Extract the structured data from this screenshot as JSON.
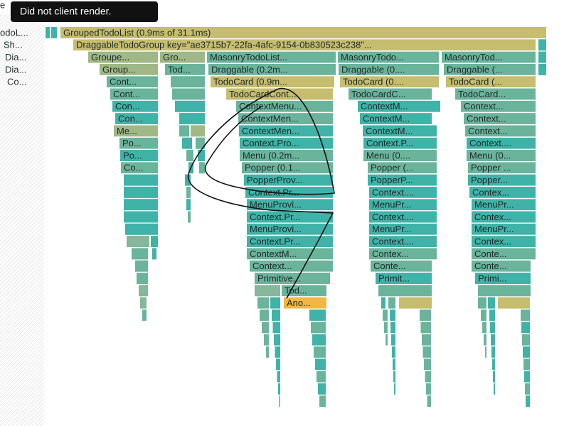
{
  "tooltip": "Did not client render.",
  "corner_text": "e",
  "rows": [
    {
      "side": "odoL...",
      "nodes": [
        {
          "label": "GroupedTodoList (0.9ms of 31.1ms)"
        }
      ]
    },
    {
      "side": "Sh...",
      "nodes": [
        {
          "label": "DraggableTodoGroup key=\"ae3715b7-22fa-4afc-9154-0b830523c238\"..."
        }
      ]
    },
    {
      "side": "Dia...",
      "nodes": [
        {
          "label": "Groupe..."
        },
        {
          "label": "Gro..."
        },
        {
          "label": "MasonryTodoList..."
        },
        {
          "label": "MasonryTodo..."
        },
        {
          "label": "MasonryTod..."
        }
      ]
    },
    {
      "side": "Dia...",
      "nodes": [
        {
          "label": "Group..."
        },
        {
          "label": "Tod..."
        },
        {
          "label": "Draggable (0.2m..."
        },
        {
          "label": "Draggable (0...."
        },
        {
          "label": "Draggable (..."
        }
      ]
    },
    {
      "side": "Co...",
      "nodes": [
        {
          "label": "Cont..."
        },
        {
          "label": "TodoCard (0.9m..."
        },
        {
          "label": "TodoCard (0...."
        },
        {
          "label": "TodoCard (..."
        }
      ]
    },
    {
      "nodes": [
        {
          "label": "Cont..."
        },
        {
          "label": "TodoCardCont..."
        },
        {
          "label": "TodoCardC..."
        },
        {
          "label": "TodoCard..."
        }
      ]
    },
    {
      "nodes": [
        {
          "label": "Con..."
        },
        {
          "label": "ContextMenu..."
        },
        {
          "label": "ContextM..."
        },
        {
          "label": "Context..."
        }
      ]
    },
    {
      "nodes": [
        {
          "label": "Con..."
        },
        {
          "label": "ContextMen..."
        },
        {
          "label": "ContextM..."
        },
        {
          "label": "Context..."
        }
      ]
    },
    {
      "nodes": [
        {
          "label": "Me..."
        },
        {
          "label": "ContextMen..."
        },
        {
          "label": "ContextM..."
        },
        {
          "label": "Context..."
        }
      ]
    },
    {
      "nodes": [
        {
          "label": "Po..."
        },
        {
          "label": "Context.Pro..."
        },
        {
          "label": "Context.P..."
        },
        {
          "label": "Context...."
        }
      ]
    },
    {
      "nodes": [
        {
          "label": "Po..."
        },
        {
          "label": "Menu (0.2m..."
        },
        {
          "label": "Menu (0...."
        },
        {
          "label": "Menu (0..."
        }
      ]
    },
    {
      "nodes": [
        {
          "label": "Co..."
        },
        {
          "label": "Popper (0.1..."
        },
        {
          "label": "Popper (..."
        },
        {
          "label": "Popper ..."
        }
      ]
    },
    {
      "nodes": [
        {
          "label": "PopperProv..."
        },
        {
          "label": "PopperP..."
        },
        {
          "label": "Popper..."
        }
      ]
    },
    {
      "nodes": [
        {
          "label": "Context.Pr..."
        },
        {
          "label": "Context...."
        },
        {
          "label": "Contex..."
        }
      ]
    },
    {
      "nodes": [
        {
          "label": "MenuProvi..."
        },
        {
          "label": "MenuPr..."
        },
        {
          "label": "MenuPr..."
        }
      ]
    },
    {
      "nodes": [
        {
          "label": "Context.Pr..."
        },
        {
          "label": "Context...."
        },
        {
          "label": "Contex..."
        }
      ]
    },
    {
      "nodes": [
        {
          "label": "MenuProvi..."
        },
        {
          "label": "MenuPr..."
        },
        {
          "label": "MenuPr..."
        }
      ]
    },
    {
      "nodes": [
        {
          "label": "Context.Pr..."
        },
        {
          "label": "Context...."
        },
        {
          "label": "Contex..."
        }
      ]
    },
    {
      "nodes": [
        {
          "label": "ContextM..."
        },
        {
          "label": "Contex..."
        },
        {
          "label": "Conte..."
        }
      ]
    },
    {
      "nodes": [
        {
          "label": "Context..."
        },
        {
          "label": "Conte..."
        },
        {
          "label": "Conte..."
        }
      ]
    },
    {
      "nodes": [
        {
          "label": "Primitive..."
        },
        {
          "label": "Primit..."
        },
        {
          "label": "Primi..."
        }
      ]
    },
    {
      "nodes": [
        {
          "label": "Tod..."
        }
      ]
    },
    {
      "nodes": [
        {
          "label": "Ano..."
        }
      ]
    }
  ]
}
